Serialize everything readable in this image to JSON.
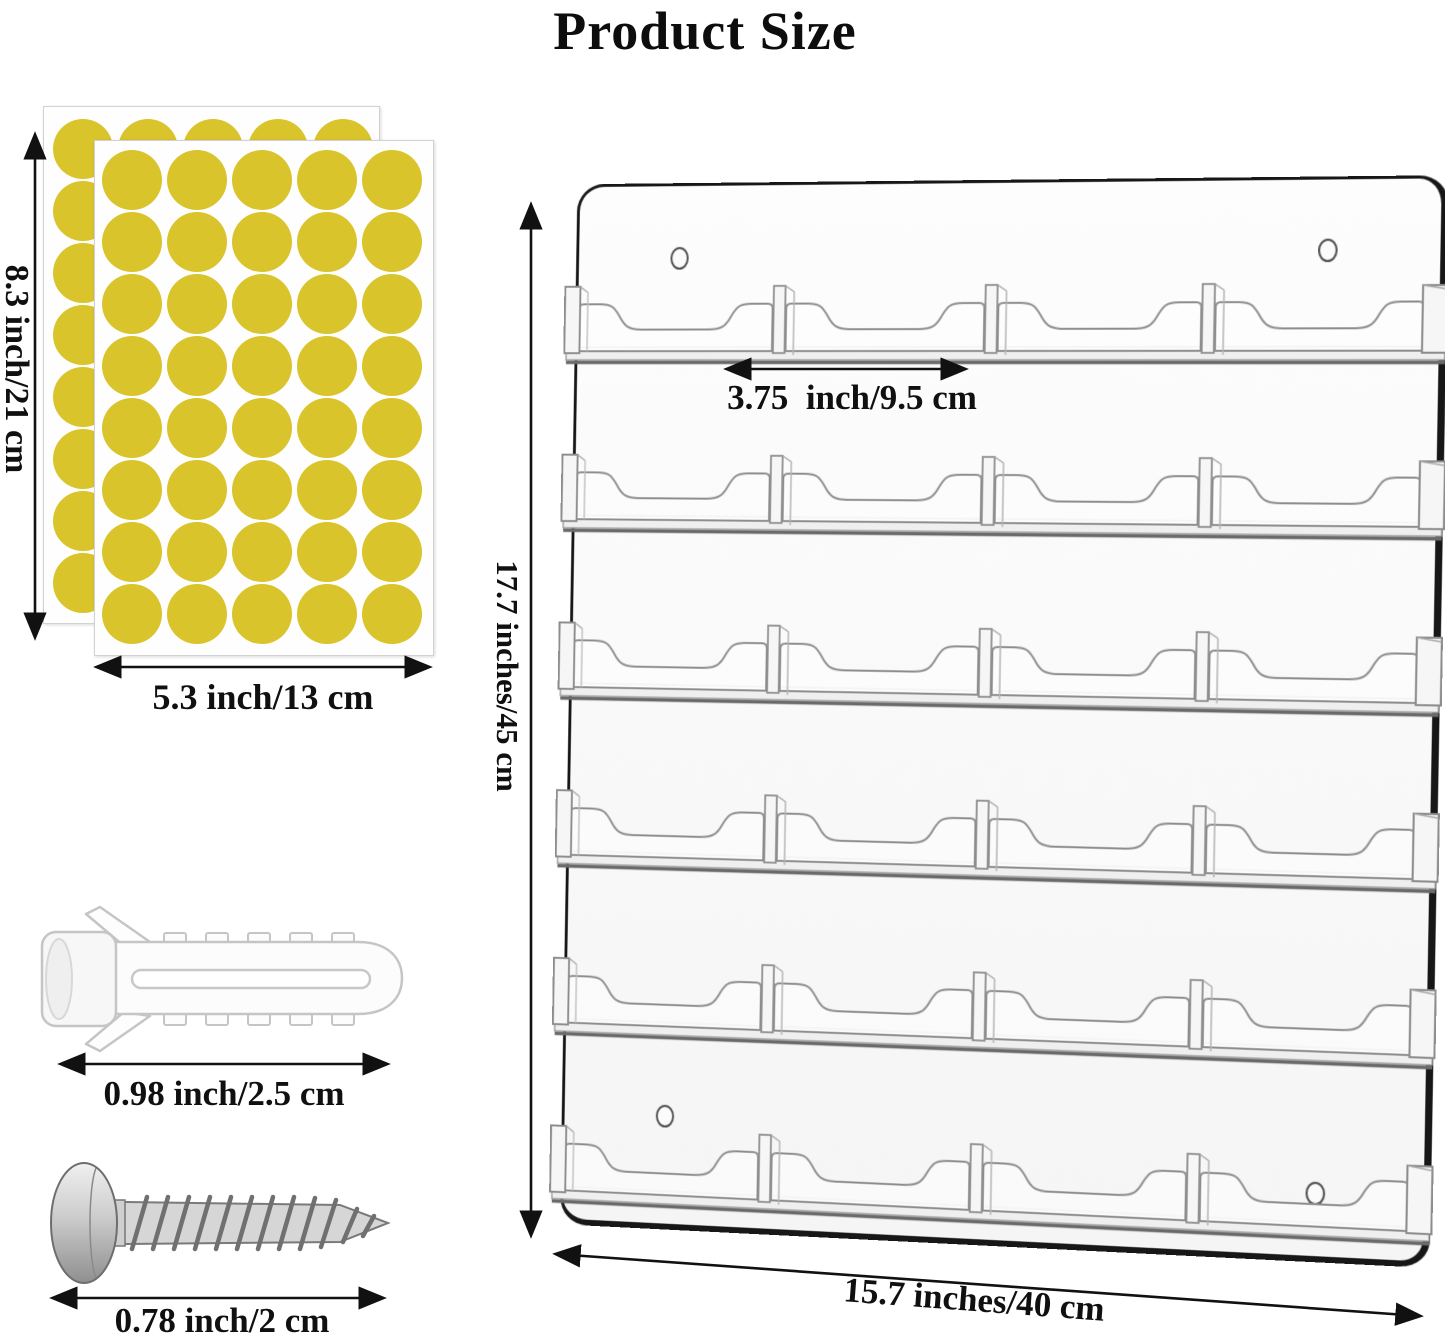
{
  "title": "Product Size",
  "colors": {
    "dot_yellow": "#d9c42b",
    "acrylic_line": "#8d8d8d",
    "panel_border": "#171717",
    "dimension_line": "#111111",
    "shelf_shadow": "#6a6a6a"
  },
  "stickers": {
    "sheet_count": 2,
    "dot_columns": 5,
    "dot_rows": 8,
    "height_label": "8.3 inch/21 cm",
    "width_label": "5.3 inch/13 cm"
  },
  "anchor": {
    "length_label": "0.98 inch/2.5 cm"
  },
  "screw": {
    "length_label": "0.78 inch/2 cm"
  },
  "holder": {
    "row_count": 6,
    "pockets_per_row": 4,
    "mounting_holes": 4,
    "height_label": "17.7 inches/45 cm",
    "width_label": "15.7 inches/40 cm",
    "pocket_width_label": "3.75  inch/9.5 cm"
  }
}
